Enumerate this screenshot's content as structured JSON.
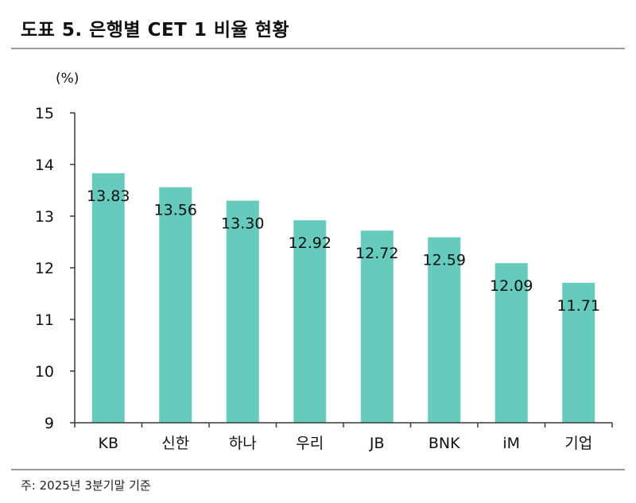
{
  "title": "도표 5. 은행별 CET 1 비율 현황",
  "footnote": "주: 2025년 3분기말 기준",
  "colors": {
    "bar": "#66cbbd",
    "axis": "#3a3a3a",
    "rule": "#9a9a9a"
  },
  "chart_data": {
    "type": "bar",
    "title": "도표 5. 은행별 CET 1 비율 현황",
    "unit_label": "(%)",
    "xlabel": "",
    "ylabel": "(%)",
    "ylim": [
      9,
      15
    ],
    "yticks": [
      9,
      10,
      11,
      12,
      13,
      14,
      15
    ],
    "categories": [
      "KB",
      "신한",
      "하나",
      "우리",
      "JB",
      "BNK",
      "iM",
      "기업"
    ],
    "values": [
      13.83,
      13.56,
      13.3,
      12.92,
      12.72,
      12.59,
      12.09,
      11.71
    ],
    "data_labels": [
      "13.83",
      "13.56",
      "13.30",
      "12.92",
      "12.72",
      "12.59",
      "12.09",
      "11.71"
    ],
    "grid": false,
    "legend": "none"
  }
}
